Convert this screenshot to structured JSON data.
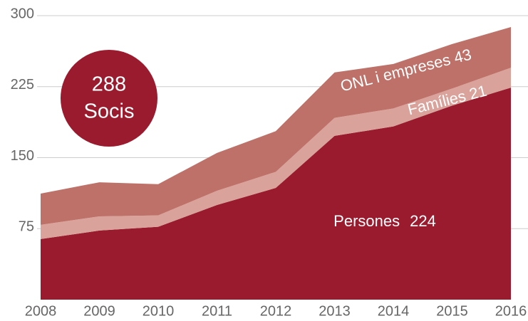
{
  "chart_data": {
    "type": "stacked_area",
    "x": [
      2008,
      2009,
      2010,
      2011,
      2012,
      2013,
      2014,
      2015,
      2016
    ],
    "xlim": [
      2008,
      2016
    ],
    "xticks": [
      2008,
      2009,
      2010,
      2011,
      2012,
      2013,
      2014,
      2015,
      2016
    ],
    "ylim": [
      0,
      300
    ],
    "yticks": [
      75,
      150,
      225,
      300
    ],
    "grid": true,
    "series": [
      {
        "name": "Persones",
        "color": "#9b1b2e",
        "values": [
          64,
          73,
          77,
          100,
          118,
          173,
          183,
          205,
          224
        ]
      },
      {
        "name": "Famílies",
        "color": "#d9a39c",
        "values": [
          15,
          15,
          12,
          15,
          17,
          19,
          19,
          18,
          21
        ]
      },
      {
        "name": "ONL i empreses",
        "color": "#bd7168",
        "values": [
          33,
          36,
          33,
          40,
          43,
          48,
          47,
          47,
          43
        ]
      }
    ],
    "total": 288,
    "total_label": "Socis"
  }
}
